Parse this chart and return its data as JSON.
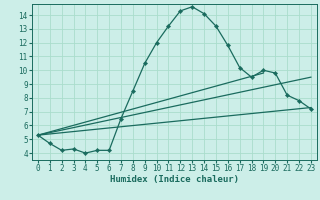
{
  "xlabel": "Humidex (Indice chaleur)",
  "bg_color": "#cceee8",
  "grid_color": "#aaddcc",
  "line_color": "#1a6b5e",
  "xlim": [
    -0.5,
    23.5
  ],
  "ylim": [
    3.5,
    14.8
  ],
  "xticks": [
    0,
    1,
    2,
    3,
    4,
    5,
    6,
    7,
    8,
    9,
    10,
    11,
    12,
    13,
    14,
    15,
    16,
    17,
    18,
    19,
    20,
    21,
    22,
    23
  ],
  "yticks": [
    4,
    5,
    6,
    7,
    8,
    9,
    10,
    11,
    12,
    13,
    14
  ],
  "main_line": {
    "x": [
      0,
      1,
      2,
      3,
      4,
      5,
      6,
      7,
      8,
      9,
      10,
      11,
      12,
      13,
      14,
      15,
      16,
      17,
      18,
      19,
      20,
      21,
      22,
      23
    ],
    "y": [
      5.3,
      4.7,
      4.2,
      4.3,
      4.0,
      4.2,
      4.2,
      6.5,
      8.5,
      10.5,
      12.0,
      13.2,
      14.3,
      14.6,
      14.1,
      13.2,
      11.8,
      10.2,
      9.5,
      10.0,
      9.8,
      8.2,
      7.8,
      7.2
    ]
  },
  "extra_lines": [
    {
      "x": [
        0,
        23
      ],
      "y": [
        5.3,
        7.3
      ]
    },
    {
      "x": [
        0,
        23
      ],
      "y": [
        5.3,
        9.5
      ]
    },
    {
      "x": [
        0,
        19
      ],
      "y": [
        5.3,
        9.8
      ]
    }
  ]
}
